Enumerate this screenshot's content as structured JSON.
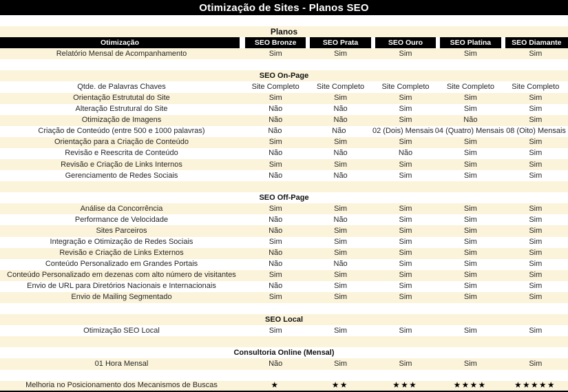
{
  "title": "Otimização de Sites - Planos SEO",
  "columns": {
    "feature": "Otimização",
    "plans": [
      "SEO Bronze",
      "SEO Prata",
      "SEO Ouro",
      "SEO Platina",
      "SEO Diamante"
    ]
  },
  "star_glyph": "★",
  "colors": {
    "band_cream": "#fbf3da",
    "header_bg": "#000000",
    "header_text": "#ffffff",
    "body_text": "#262626"
  },
  "rows": [
    {
      "type": "blank"
    },
    {
      "type": "plans_title",
      "text": "Planos"
    },
    {
      "type": "columns"
    },
    {
      "type": "feature",
      "label": "Relatório Mensal de Acompanhamento",
      "values": [
        "Sim",
        "Sim",
        "Sim",
        "Sim",
        "Sim"
      ]
    },
    {
      "type": "blank"
    },
    {
      "type": "section",
      "text": "SEO On-Page"
    },
    {
      "type": "feature",
      "label": "Qtde. de Palavras Chaves",
      "values": [
        "Site Completo",
        "Site Completo",
        "Site Completo",
        "Site Completo",
        "Site Completo"
      ]
    },
    {
      "type": "feature",
      "label": "Orientação Estrututal do Site",
      "values": [
        "Sim",
        "Sim",
        "Sim",
        "Sim",
        "Sim"
      ]
    },
    {
      "type": "feature",
      "label": "Alteração Estrutural do Site",
      "values": [
        "Não",
        "Não",
        "Sim",
        "Sim",
        "Sim"
      ]
    },
    {
      "type": "feature",
      "label": "Otimização de Imagens",
      "values": [
        "Não",
        "Não",
        "Sim",
        "Não",
        "Sim"
      ]
    },
    {
      "type": "feature",
      "label": "Criação de Conteúdo (entre 500 e 1000 palavras)",
      "values": [
        "Não",
        "Não",
        "02 (Dois) Mensais",
        "04 (Quatro) Mensais",
        "08 (Oito) Mensais"
      ]
    },
    {
      "type": "feature",
      "label": "Orientação para a Criação de Conteúdo",
      "values": [
        "Sim",
        "Sim",
        "Sim",
        "Sim",
        "Sim"
      ]
    },
    {
      "type": "feature",
      "label": "Revisão e Reescrita de Conteúdo",
      "values": [
        "Não",
        "Não",
        "Não",
        "Sim",
        "Sim"
      ]
    },
    {
      "type": "feature",
      "label": "Revisão e Criação de Links Internos",
      "values": [
        "Sim",
        "Sim",
        "Sim",
        "Sim",
        "Sim"
      ]
    },
    {
      "type": "feature",
      "label": "Gerenciamento de Redes Sociais",
      "values": [
        "Não",
        "Não",
        "Sim",
        "Sim",
        "Sim"
      ]
    },
    {
      "type": "blank"
    },
    {
      "type": "section",
      "text": "SEO Off-Page"
    },
    {
      "type": "feature",
      "label": "Análise da Concorrência",
      "values": [
        "Sim",
        "Sim",
        "Sim",
        "Sim",
        "Sim"
      ]
    },
    {
      "type": "feature",
      "label": "Performance de Velocidade",
      "values": [
        "Não",
        "Não",
        "Sim",
        "Sim",
        "Sim"
      ]
    },
    {
      "type": "feature",
      "label": "Sites Parceiros",
      "values": [
        "Não",
        "Sim",
        "Sim",
        "Sim",
        "Sim"
      ]
    },
    {
      "type": "feature",
      "label": "Integração e Otimização de Redes Sociais",
      "values": [
        "Sim",
        "Sim",
        "Sim",
        "Sim",
        "Sim"
      ]
    },
    {
      "type": "feature",
      "label": "Revisão e Criação de Links Externos",
      "values": [
        "Não",
        "Sim",
        "Sim",
        "Sim",
        "Sim"
      ]
    },
    {
      "type": "feature",
      "label": "Conteúdo Personalizado em Grandes Portais",
      "values": [
        "Não",
        "Não",
        "Sim",
        "Sim",
        "Sim"
      ]
    },
    {
      "type": "feature",
      "label": "Conteúdo Personalizado em dezenas com alto número de visitantes",
      "values": [
        "Sim",
        "Sim",
        "Sim",
        "Sim",
        "Sim"
      ]
    },
    {
      "type": "feature",
      "label": "Envio de URL para Diretórios Nacionais e Internacionais",
      "values": [
        "Não",
        "Sim",
        "Sim",
        "Sim",
        "Sim"
      ]
    },
    {
      "type": "feature",
      "label": "Envio de Mailing Segmentado",
      "values": [
        "Sim",
        "Sim",
        "Sim",
        "Sim",
        "Sim"
      ]
    },
    {
      "type": "blank"
    },
    {
      "type": "section",
      "text": "SEO Local"
    },
    {
      "type": "feature",
      "label": "Otimização SEO Local",
      "values": [
        "Sim",
        "Sim",
        "Sim",
        "Sim",
        "Sim"
      ]
    },
    {
      "type": "blank"
    },
    {
      "type": "section",
      "text": "Consultoria Online (Mensal)"
    },
    {
      "type": "feature",
      "label": "01 Hora Mensal",
      "values": [
        "Não",
        "Sim",
        "Sim",
        "Sim",
        "Sim"
      ]
    },
    {
      "type": "blank"
    },
    {
      "type": "rating",
      "label": "Melhoria no Posicionamento dos Mecanismos de Buscas",
      "stars": [
        1,
        2,
        3,
        4,
        5
      ]
    }
  ]
}
